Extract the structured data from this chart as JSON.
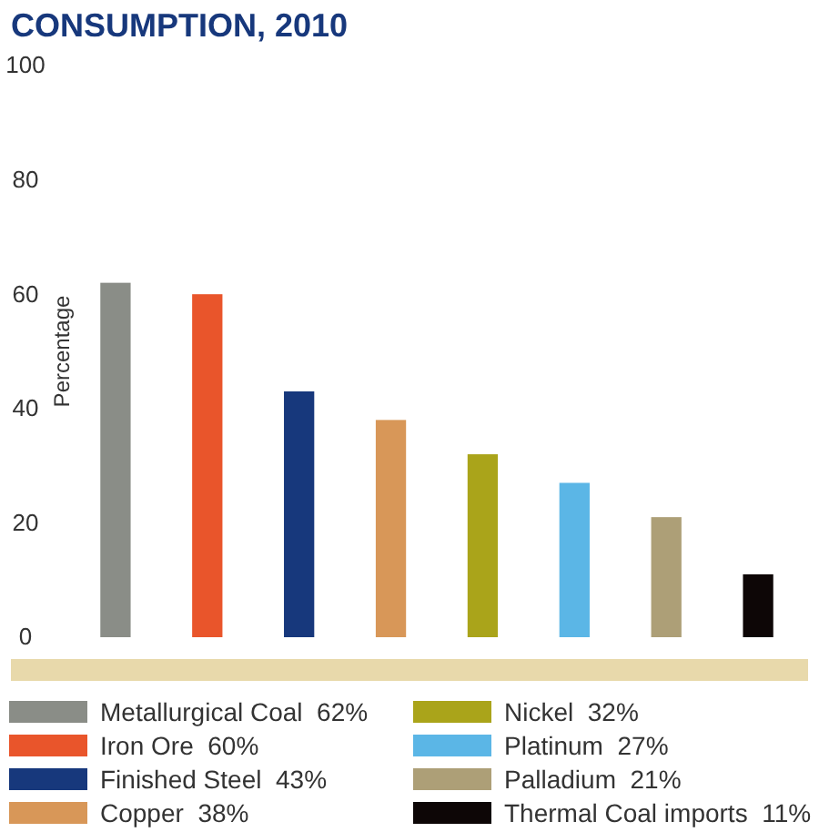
{
  "chart_data": {
    "type": "bar",
    "title": "CONSUMPTION, 2010",
    "ylabel": "Percentage",
    "categories": [
      null,
      null,
      null,
      null,
      null,
      null,
      null,
      null
    ],
    "series": [
      {
        "name": "Metallurgical Coal  62%",
        "color": "#8a8d87",
        "values": [
          62,
          null,
          null,
          null,
          null,
          null,
          null,
          null
        ]
      },
      {
        "name": "Iron Ore  60%",
        "color": "#e9552b",
        "values": [
          null,
          60,
          null,
          null,
          null,
          null,
          null,
          null
        ]
      },
      {
        "name": "Finished Steel  43%",
        "color": "#17387c",
        "values": [
          null,
          null,
          43,
          null,
          null,
          null,
          null,
          null
        ]
      },
      {
        "name": "Copper  38%",
        "color": "#d89758",
        "values": [
          null,
          null,
          null,
          38,
          null,
          null,
          null,
          null
        ]
      },
      {
        "name": "Nickel  32%",
        "color": "#aaa41a",
        "values": [
          null,
          null,
          null,
          null,
          32,
          null,
          null,
          null
        ]
      },
      {
        "name": "Platinum  27%",
        "color": "#5bb6e6",
        "values": [
          null,
          null,
          null,
          null,
          null,
          27,
          null,
          null
        ]
      },
      {
        "name": "Palladium  21%",
        "color": "#ad9f77",
        "values": [
          null,
          null,
          null,
          null,
          null,
          null,
          21,
          null
        ]
      },
      {
        "name": "Thermal Coal imports  11%",
        "color": "#0d0606",
        "values": [
          null,
          null,
          null,
          null,
          null,
          null,
          null,
          11
        ]
      }
    ],
    "ylim": [
      0,
      100
    ],
    "yticks": [
      0,
      20,
      40,
      60,
      80,
      100
    ],
    "legend": "bottom",
    "grid": false,
    "stacked": true
  }
}
